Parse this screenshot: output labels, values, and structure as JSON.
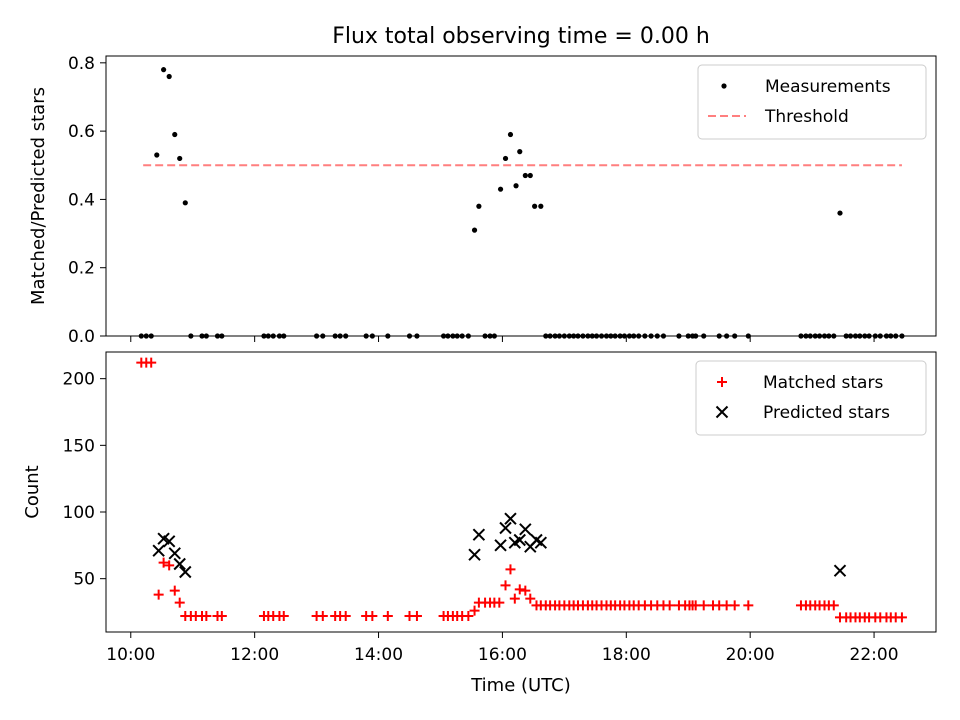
{
  "chart_data": [
    {
      "type": "scatter",
      "title": "Flux total observing time = 0.00 h",
      "xlabel": "",
      "ylabel": "Matched/Predicted stars",
      "xlim": [
        9.6,
        23.0
      ],
      "ylim": [
        0.0,
        0.82
      ],
      "yticks": [
        0.0,
        0.2,
        0.4,
        0.6,
        0.8
      ],
      "ytick_labels": [
        "0.0",
        "0.2",
        "0.4",
        "0.6",
        "0.8"
      ],
      "xticks": [
        10,
        12,
        14,
        16,
        18,
        20,
        22
      ],
      "legend_position": "top-right",
      "series": [
        {
          "name": "Measurements",
          "marker": "dot",
          "color": "#000000",
          "points": [
            [
              10.17,
              0
            ],
            [
              10.25,
              0
            ],
            [
              10.33,
              0
            ],
            [
              10.42,
              0.53
            ],
            [
              10.53,
              0.78
            ],
            [
              10.62,
              0.76
            ],
            [
              10.71,
              0.59
            ],
            [
              10.79,
              0.52
            ],
            [
              10.88,
              0.39
            ],
            [
              10.97,
              0
            ],
            [
              11.15,
              0
            ],
            [
              11.22,
              0
            ],
            [
              11.4,
              0
            ],
            [
              11.47,
              0
            ],
            [
              12.15,
              0
            ],
            [
              12.22,
              0
            ],
            [
              12.3,
              0
            ],
            [
              12.4,
              0
            ],
            [
              12.47,
              0
            ],
            [
              13.0,
              0
            ],
            [
              13.1,
              0
            ],
            [
              13.3,
              0
            ],
            [
              13.38,
              0
            ],
            [
              13.47,
              0
            ],
            [
              13.8,
              0
            ],
            [
              13.9,
              0
            ],
            [
              14.15,
              0
            ],
            [
              14.5,
              0
            ],
            [
              14.62,
              0
            ],
            [
              15.05,
              0
            ],
            [
              15.12,
              0
            ],
            [
              15.2,
              0
            ],
            [
              15.27,
              0
            ],
            [
              15.35,
              0
            ],
            [
              15.45,
              0
            ],
            [
              15.55,
              0.31
            ],
            [
              15.62,
              0.38
            ],
            [
              15.72,
              0
            ],
            [
              15.8,
              0
            ],
            [
              15.87,
              0
            ],
            [
              15.97,
              0.43
            ],
            [
              16.05,
              0.52
            ],
            [
              16.13,
              0.59
            ],
            [
              16.22,
              0.44
            ],
            [
              16.28,
              0.54
            ],
            [
              16.37,
              0.47
            ],
            [
              16.45,
              0.47
            ],
            [
              16.52,
              0.38
            ],
            [
              16.62,
              0.38
            ],
            [
              16.7,
              0
            ],
            [
              16.77,
              0
            ],
            [
              16.85,
              0
            ],
            [
              16.92,
              0
            ],
            [
              17.0,
              0
            ],
            [
              17.08,
              0
            ],
            [
              17.15,
              0
            ],
            [
              17.22,
              0
            ],
            [
              17.3,
              0
            ],
            [
              17.38,
              0
            ],
            [
              17.45,
              0
            ],
            [
              17.52,
              0
            ],
            [
              17.6,
              0
            ],
            [
              17.68,
              0
            ],
            [
              17.75,
              0
            ],
            [
              17.82,
              0
            ],
            [
              17.9,
              0
            ],
            [
              17.97,
              0
            ],
            [
              18.05,
              0
            ],
            [
              18.12,
              0
            ],
            [
              18.2,
              0
            ],
            [
              18.3,
              0
            ],
            [
              18.4,
              0
            ],
            [
              18.5,
              0
            ],
            [
              18.6,
              0
            ],
            [
              18.85,
              0
            ],
            [
              19.0,
              0
            ],
            [
              19.07,
              0
            ],
            [
              19.12,
              0
            ],
            [
              19.25,
              0
            ],
            [
              19.5,
              0
            ],
            [
              19.62,
              0
            ],
            [
              19.75,
              0
            ],
            [
              19.97,
              0
            ],
            [
              20.82,
              0
            ],
            [
              20.9,
              0
            ],
            [
              20.97,
              0
            ],
            [
              21.05,
              0
            ],
            [
              21.12,
              0
            ],
            [
              21.2,
              0
            ],
            [
              21.27,
              0
            ],
            [
              21.35,
              0
            ],
            [
              21.45,
              0.36
            ],
            [
              21.55,
              0
            ],
            [
              21.62,
              0
            ],
            [
              21.7,
              0
            ],
            [
              21.77,
              0
            ],
            [
              21.85,
              0
            ],
            [
              21.92,
              0
            ],
            [
              22.02,
              0
            ],
            [
              22.1,
              0
            ],
            [
              22.2,
              0
            ],
            [
              22.27,
              0
            ],
            [
              22.35,
              0
            ],
            [
              22.45,
              0
            ]
          ]
        },
        {
          "name": "Threshold",
          "marker": "dashed-line",
          "color": "#ff7f7f",
          "x": [
            10.2,
            22.45
          ],
          "y": [
            0.5,
            0.5
          ]
        }
      ]
    },
    {
      "type": "scatter",
      "title": "",
      "xlabel": "Time (UTC)",
      "ylabel": "Count",
      "xlim": [
        9.6,
        23.0
      ],
      "ylim": [
        10,
        220
      ],
      "yticks": [
        50,
        100,
        150,
        200
      ],
      "ytick_labels": [
        "50",
        "100",
        "150",
        "200"
      ],
      "xticks": [
        10,
        12,
        14,
        16,
        18,
        20,
        22
      ],
      "xtick_labels": [
        "10:00",
        "12:00",
        "14:00",
        "16:00",
        "18:00",
        "20:00",
        "22:00"
      ],
      "legend_position": "top-right",
      "series": [
        {
          "name": "Matched stars",
          "marker": "plus",
          "color": "#ff0000",
          "points": [
            [
              10.17,
              212
            ],
            [
              10.25,
              212
            ],
            [
              10.33,
              212
            ],
            [
              10.45,
              38
            ],
            [
              10.53,
              62
            ],
            [
              10.62,
              60
            ],
            [
              10.71,
              41
            ],
            [
              10.79,
              32
            ],
            [
              10.88,
              22
            ],
            [
              10.97,
              22
            ],
            [
              11.05,
              22
            ],
            [
              11.15,
              22
            ],
            [
              11.22,
              22
            ],
            [
              11.4,
              22
            ],
            [
              11.47,
              22
            ],
            [
              12.15,
              22
            ],
            [
              12.22,
              22
            ],
            [
              12.3,
              22
            ],
            [
              12.4,
              22
            ],
            [
              12.47,
              22
            ],
            [
              13.0,
              22
            ],
            [
              13.1,
              22
            ],
            [
              13.3,
              22
            ],
            [
              13.38,
              22
            ],
            [
              13.47,
              22
            ],
            [
              13.8,
              22
            ],
            [
              13.9,
              22
            ],
            [
              14.15,
              22
            ],
            [
              14.5,
              22
            ],
            [
              14.62,
              22
            ],
            [
              15.05,
              22
            ],
            [
              15.12,
              22
            ],
            [
              15.2,
              22
            ],
            [
              15.27,
              22
            ],
            [
              15.35,
              22
            ],
            [
              15.45,
              22
            ],
            [
              15.55,
              26
            ],
            [
              15.62,
              32
            ],
            [
              15.72,
              32
            ],
            [
              15.8,
              32
            ],
            [
              15.87,
              32
            ],
            [
              15.95,
              32
            ],
            [
              16.05,
              45
            ],
            [
              16.13,
              57
            ],
            [
              16.2,
              35
            ],
            [
              16.28,
              42
            ],
            [
              16.37,
              41
            ],
            [
              16.45,
              35
            ],
            [
              16.55,
              30
            ],
            [
              16.62,
              30
            ],
            [
              16.7,
              30
            ],
            [
              16.77,
              30
            ],
            [
              16.85,
              30
            ],
            [
              16.92,
              30
            ],
            [
              17.0,
              30
            ],
            [
              17.08,
              30
            ],
            [
              17.15,
              30
            ],
            [
              17.22,
              30
            ],
            [
              17.3,
              30
            ],
            [
              17.38,
              30
            ],
            [
              17.45,
              30
            ],
            [
              17.52,
              30
            ],
            [
              17.6,
              30
            ],
            [
              17.68,
              30
            ],
            [
              17.75,
              30
            ],
            [
              17.82,
              30
            ],
            [
              17.9,
              30
            ],
            [
              17.97,
              30
            ],
            [
              18.05,
              30
            ],
            [
              18.12,
              30
            ],
            [
              18.2,
              30
            ],
            [
              18.3,
              30
            ],
            [
              18.4,
              30
            ],
            [
              18.5,
              30
            ],
            [
              18.6,
              30
            ],
            [
              18.7,
              30
            ],
            [
              18.85,
              30
            ],
            [
              18.95,
              30
            ],
            [
              19.02,
              30
            ],
            [
              19.07,
              30
            ],
            [
              19.12,
              30
            ],
            [
              19.25,
              30
            ],
            [
              19.4,
              30
            ],
            [
              19.5,
              30
            ],
            [
              19.62,
              30
            ],
            [
              19.75,
              30
            ],
            [
              19.97,
              30
            ],
            [
              20.82,
              30
            ],
            [
              20.9,
              30
            ],
            [
              20.97,
              30
            ],
            [
              21.05,
              30
            ],
            [
              21.12,
              30
            ],
            [
              21.2,
              30
            ],
            [
              21.27,
              30
            ],
            [
              21.35,
              30
            ],
            [
              21.45,
              21
            ],
            [
              21.55,
              21
            ],
            [
              21.62,
              21
            ],
            [
              21.7,
              21
            ],
            [
              21.77,
              21
            ],
            [
              21.85,
              21
            ],
            [
              21.92,
              21
            ],
            [
              22.02,
              21
            ],
            [
              22.1,
              21
            ],
            [
              22.2,
              21
            ],
            [
              22.27,
              21
            ],
            [
              22.35,
              21
            ],
            [
              22.45,
              21
            ]
          ]
        },
        {
          "name": "Predicted stars",
          "marker": "x",
          "color": "#000000",
          "points": [
            [
              10.45,
              71
            ],
            [
              10.53,
              80
            ],
            [
              10.62,
              78
            ],
            [
              10.71,
              69
            ],
            [
              10.79,
              61
            ],
            [
              10.88,
              55
            ],
            [
              15.55,
              68
            ],
            [
              15.62,
              83
            ],
            [
              15.97,
              75
            ],
            [
              16.05,
              88
            ],
            [
              16.13,
              95
            ],
            [
              16.2,
              77
            ],
            [
              16.28,
              79
            ],
            [
              16.37,
              87
            ],
            [
              16.45,
              74
            ],
            [
              16.55,
              79
            ],
            [
              16.62,
              77
            ],
            [
              21.45,
              56
            ]
          ]
        }
      ]
    }
  ]
}
